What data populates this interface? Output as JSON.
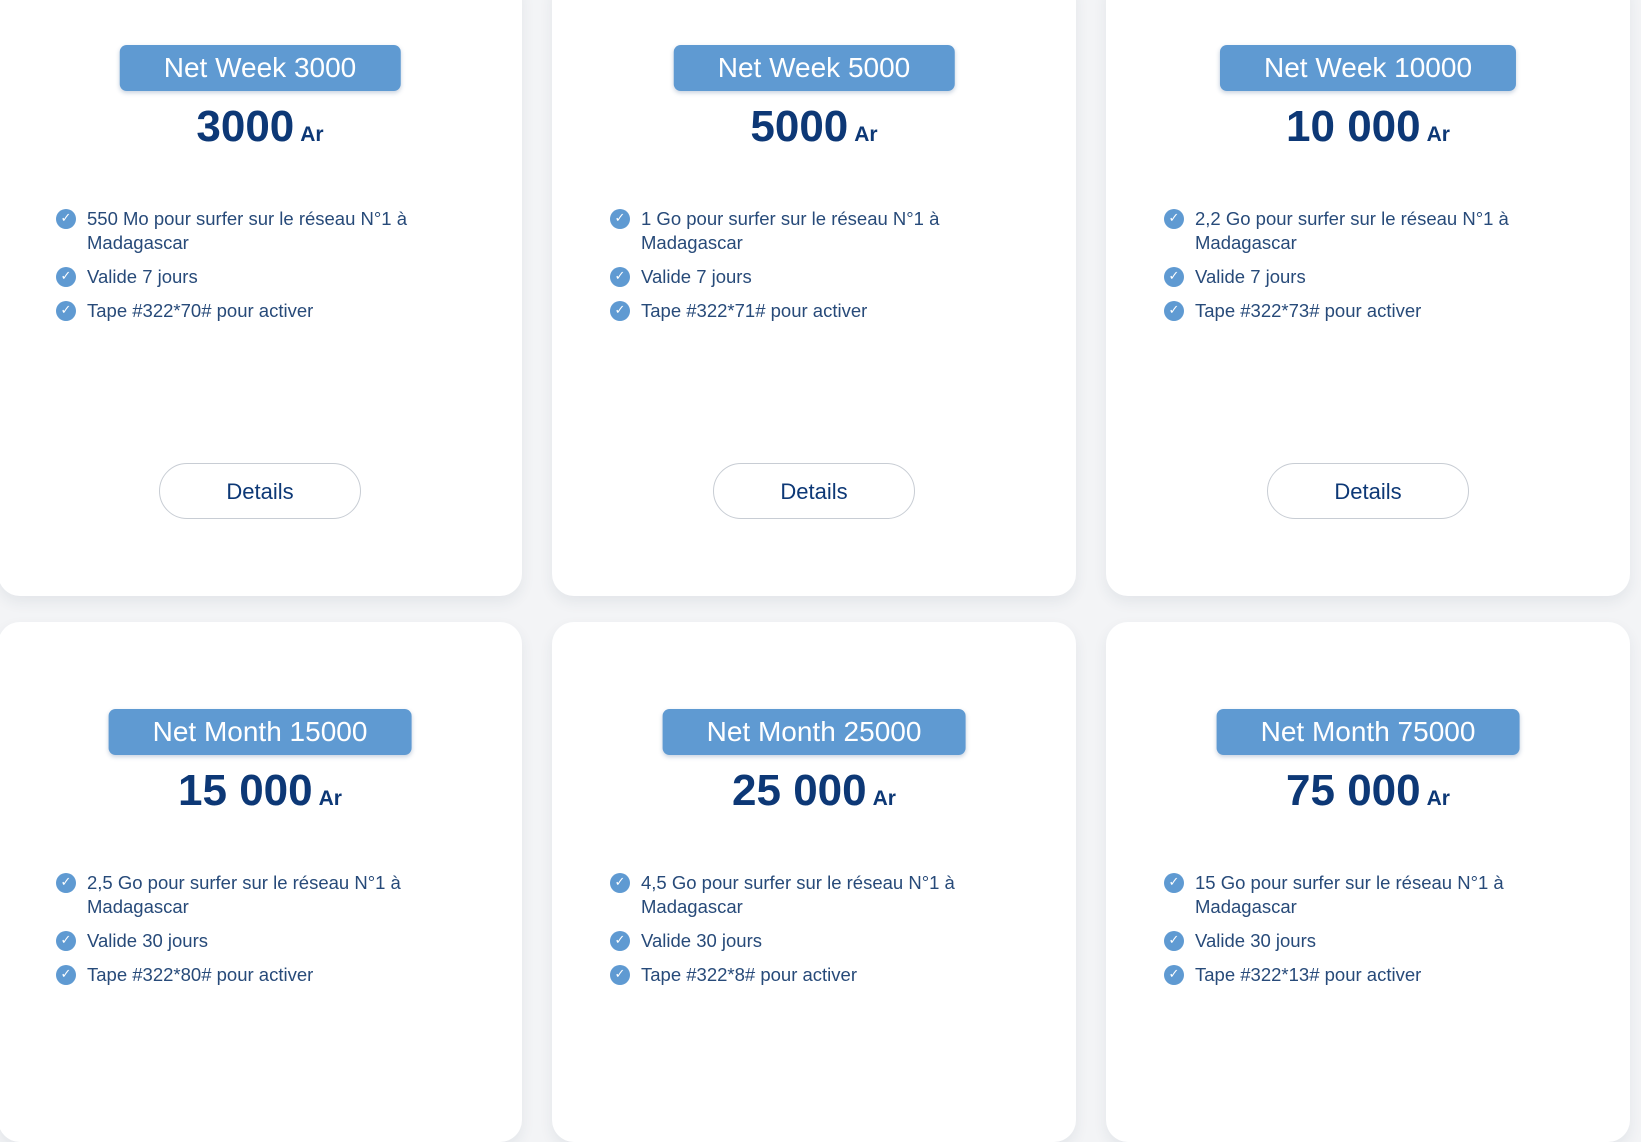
{
  "currency": "Ar",
  "details_label": "Details",
  "colors": {
    "badge_bg": "#5f9ad2",
    "price_text": "#0d3876",
    "feature_text": "#274a79",
    "check": "#5f9ad2"
  },
  "icons": {
    "feature": "check-circle-icon"
  },
  "offers": [
    {
      "name": "Net Week 3000",
      "price": "3000",
      "features": [
        "550 Mo pour surfer sur le réseau N°1 à Madagascar",
        "Valide 7 jours",
        "Tape #322*70# pour activer"
      ]
    },
    {
      "name": "Net Week 5000",
      "price": "5000",
      "features": [
        "1 Go pour surfer sur le réseau N°1 à Madagascar",
        "Valide 7 jours",
        "Tape #322*71# pour activer"
      ]
    },
    {
      "name": "Net Week 10000",
      "price": "10 000",
      "features": [
        "2,2 Go pour surfer sur le réseau N°1 à Madagascar",
        "Valide 7 jours",
        "Tape #322*73# pour activer"
      ]
    },
    {
      "name": "Net Month 15000",
      "price": "15 000",
      "features": [
        "2,5 Go pour surfer sur le réseau N°1 à Madagascar",
        "Valide 30 jours",
        "Tape #322*80# pour activer"
      ]
    },
    {
      "name": "Net Month 25000",
      "price": "25 000",
      "features": [
        "4,5 Go pour surfer sur le réseau N°1 à Madagascar",
        "Valide 30 jours",
        "Tape #322*8# pour activer"
      ]
    },
    {
      "name": "Net Month 75000",
      "price": "75 000",
      "features": [
        "15 Go pour surfer sur le réseau N°1 à Madagascar",
        "Valide 30 jours",
        "Tape #322*13# pour activer"
      ]
    }
  ]
}
